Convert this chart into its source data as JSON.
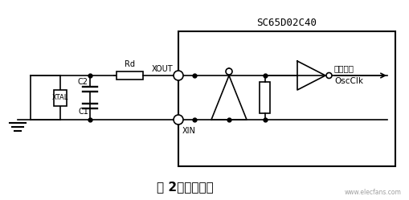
{
  "bg_color": "#ffffff",
  "fig_width": 5.09,
  "fig_height": 2.49,
  "title": "SC65D02C40",
  "caption": "图 2－振荡电路",
  "watermark": "www.elecfans.com",
  "lw": 1.2
}
